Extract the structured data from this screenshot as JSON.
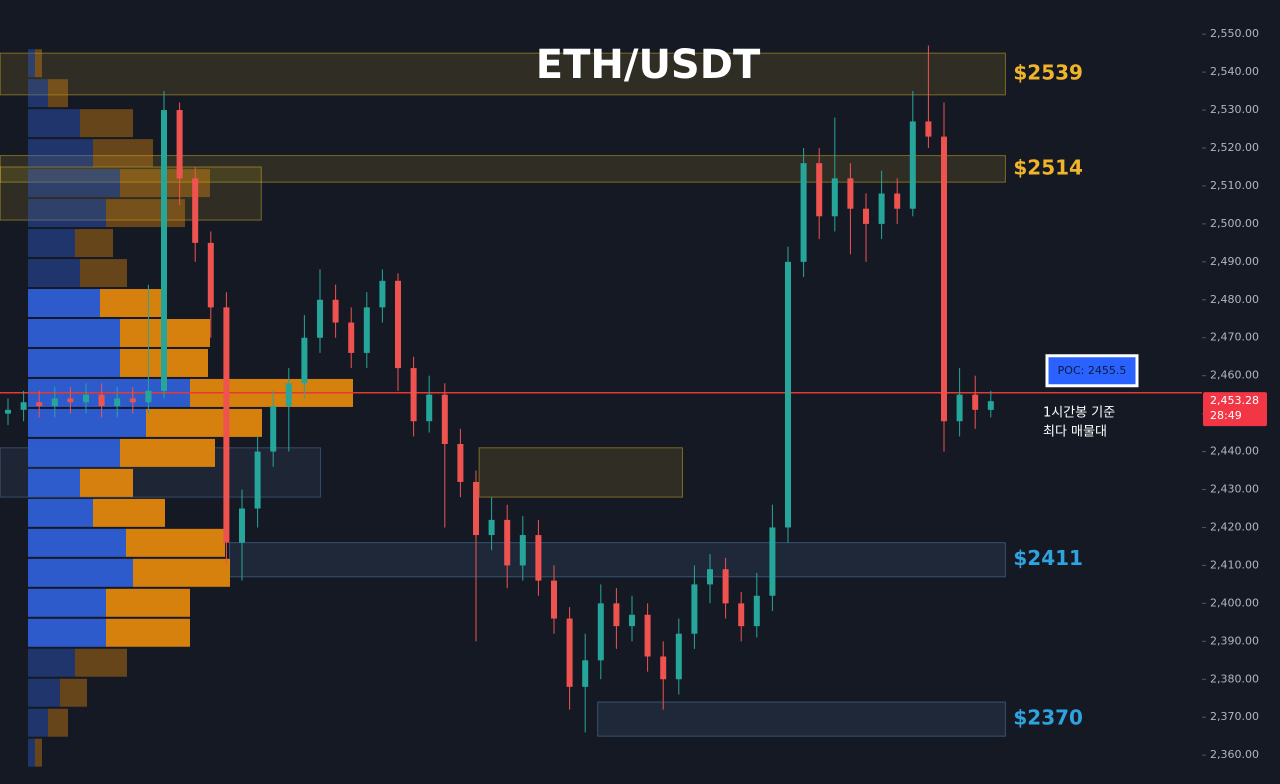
{
  "chart_data": {
    "type": "candlestick",
    "title": "ETH/USDT",
    "up_color": "#26a69a",
    "down_color": "#ef5350",
    "ylim": [
      2352.4,
      2559.0
    ],
    "yticks": [
      {
        "value": 2360,
        "label": "2,360.00"
      },
      {
        "value": 2370,
        "label": "2,370.00"
      },
      {
        "value": 2380,
        "label": "2,380.00"
      },
      {
        "value": 2390,
        "label": "2,390.00"
      },
      {
        "value": 2400,
        "label": "2,400.00"
      },
      {
        "value": 2410,
        "label": "2,410.00"
      },
      {
        "value": 2420,
        "label": "2,420.00"
      },
      {
        "value": 2430,
        "label": "2,430.00"
      },
      {
        "value": 2440,
        "label": "2,440.00"
      },
      {
        "value": 2450,
        "label": "2,450.00"
      },
      {
        "value": 2460,
        "label": "2,460.00"
      },
      {
        "value": 2470,
        "label": "2,470.00"
      },
      {
        "value": 2480,
        "label": "2,480.00"
      },
      {
        "value": 2490,
        "label": "2,490.00"
      },
      {
        "value": 2500,
        "label": "2,500.00"
      },
      {
        "value": 2510,
        "label": "2,510.00"
      },
      {
        "value": 2520,
        "label": "2,520.00"
      },
      {
        "value": 2530,
        "label": "2,530.00"
      },
      {
        "value": 2540,
        "label": "2,540.00"
      },
      {
        "value": 2550,
        "label": "2,550.00"
      }
    ],
    "ohlc": [
      [
        2450,
        2454,
        2447,
        2451
      ],
      [
        2451,
        2456,
        2448,
        2453
      ],
      [
        2453,
        2456,
        2449,
        2452
      ],
      [
        2452,
        2457,
        2449,
        2454
      ],
      [
        2454,
        2457,
        2450,
        2453
      ],
      [
        2453,
        2458,
        2450,
        2455
      ],
      [
        2455,
        2458,
        2449,
        2452
      ],
      [
        2452,
        2457,
        2449,
        2454
      ],
      [
        2454,
        2457,
        2450,
        2453
      ],
      [
        2453,
        2484,
        2450,
        2456
      ],
      [
        2456,
        2535,
        2454,
        2530
      ],
      [
        2530,
        2532,
        2505,
        2512
      ],
      [
        2512,
        2515,
        2490,
        2495
      ],
      [
        2495,
        2498,
        2470,
        2478
      ],
      [
        2478,
        2482,
        2410,
        2416
      ],
      [
        2416,
        2430,
        2406,
        2425
      ],
      [
        2425,
        2444,
        2420,
        2440
      ],
      [
        2440,
        2456,
        2436,
        2452
      ],
      [
        2452,
        2462,
        2440,
        2458
      ],
      [
        2458,
        2476,
        2454,
        2470
      ],
      [
        2470,
        2488,
        2466,
        2480
      ],
      [
        2480,
        2484,
        2470,
        2474
      ],
      [
        2474,
        2478,
        2462,
        2466
      ],
      [
        2466,
        2482,
        2462,
        2478
      ],
      [
        2478,
        2488,
        2474,
        2485
      ],
      [
        2485,
        2487,
        2456,
        2462
      ],
      [
        2462,
        2465,
        2444,
        2448
      ],
      [
        2448,
        2460,
        2445,
        2455
      ],
      [
        2455,
        2458,
        2420,
        2442
      ],
      [
        2442,
        2446,
        2428,
        2432
      ],
      [
        2432,
        2435,
        2390,
        2418
      ],
      [
        2418,
        2428,
        2414,
        2422
      ],
      [
        2422,
        2426,
        2404,
        2410
      ],
      [
        2410,
        2423,
        2406,
        2418
      ],
      [
        2418,
        2422,
        2402,
        2406
      ],
      [
        2406,
        2410,
        2392,
        2396
      ],
      [
        2396,
        2399,
        2372,
        2378
      ],
      [
        2378,
        2392,
        2366,
        2385
      ],
      [
        2385,
        2405,
        2380,
        2400
      ],
      [
        2400,
        2404,
        2388,
        2394
      ],
      [
        2394,
        2402,
        2390,
        2397
      ],
      [
        2397,
        2400,
        2382,
        2386
      ],
      [
        2386,
        2390,
        2372,
        2380
      ],
      [
        2380,
        2396,
        2376,
        2392
      ],
      [
        2392,
        2410,
        2388,
        2405
      ],
      [
        2405,
        2413,
        2400,
        2409
      ],
      [
        2409,
        2412,
        2396,
        2400
      ],
      [
        2400,
        2403,
        2390,
        2394
      ],
      [
        2394,
        2408,
        2391,
        2402
      ],
      [
        2402,
        2426,
        2398,
        2420
      ],
      [
        2420,
        2494,
        2416,
        2490
      ],
      [
        2490,
        2520,
        2486,
        2516
      ],
      [
        2516,
        2520,
        2496,
        2502
      ],
      [
        2502,
        2528,
        2498,
        2512
      ],
      [
        2512,
        2516,
        2492,
        2504
      ],
      [
        2504,
        2508,
        2490,
        2500
      ],
      [
        2500,
        2514,
        2496,
        2508
      ],
      [
        2508,
        2512,
        2500,
        2504
      ],
      [
        2504,
        2535,
        2502,
        2527
      ],
      [
        2527,
        2547,
        2520,
        2523
      ],
      [
        2523,
        2532,
        2440,
        2448
      ],
      [
        2448,
        2462,
        2444,
        2455
      ],
      [
        2455,
        2460,
        2446,
        2451
      ],
      [
        2451,
        2456,
        2449,
        2453.28
      ]
    ],
    "volume_profile": {
      "bins": [
        2356.7,
        2364.6,
        2372.5,
        2380.4,
        2388.3,
        2396.2,
        2404.1,
        2412.0,
        2419.9,
        2427.8,
        2435.7,
        2443.6,
        2451.5,
        2459.4,
        2467.3,
        2475.2,
        2483.1,
        2491.0,
        2498.9,
        2506.8,
        2514.7,
        2522.6,
        2530.5,
        2538.4,
        2546.3
      ],
      "buy": [
        7,
        20,
        32,
        47,
        78,
        78,
        105,
        98,
        65,
        52,
        92,
        118,
        162,
        92,
        92,
        72,
        52,
        47,
        78,
        92,
        65,
        52,
        20,
        7
      ],
      "sell": [
        7,
        20,
        27,
        52,
        84,
        84,
        97,
        99,
        72,
        53,
        95,
        116,
        163,
        88,
        90,
        62,
        47,
        38,
        79,
        90,
        60,
        53,
        20,
        7
      ],
      "buy_color": "#2f5fd6",
      "sell_color": "#e0860e",
      "value_area": [
        2388.3,
        2483.1
      ]
    },
    "zones": [
      {
        "low": 2534,
        "high": 2545,
        "from": -0.5,
        "to": 64,
        "color": "#e6c229",
        "label": "$2539"
      },
      {
        "low": 2511,
        "high": 2518,
        "from": -0.5,
        "to": 64,
        "color": "#e6c229",
        "label": "$2514"
      },
      {
        "low": 2501,
        "high": 2515,
        "from": -0.5,
        "to": 16.3,
        "color": "#e6c229"
      },
      {
        "low": 2428,
        "high": 2441,
        "from": -0.5,
        "to": 20.1,
        "color": "#5b7fa8"
      },
      {
        "low": 2428,
        "high": 2441,
        "from": 30.2,
        "to": 43.3,
        "color": "#e6c229"
      },
      {
        "low": 2407,
        "high": 2416,
        "from": 14.2,
        "to": 64,
        "color": "#5b8fc0",
        "label": "$2411"
      },
      {
        "low": 2365,
        "high": 2374,
        "from": 37.8,
        "to": 64,
        "color": "#5b8fc0",
        "label": "$2370"
      }
    ],
    "poc": {
      "value": 2455.5,
      "label": "POC: 2455.5"
    },
    "note": [
      "1시간봉 기준",
      "최다 매물대"
    ],
    "last_price": {
      "value": 2453.28,
      "label": "2,453.28"
    },
    "countdown": "28:49"
  }
}
